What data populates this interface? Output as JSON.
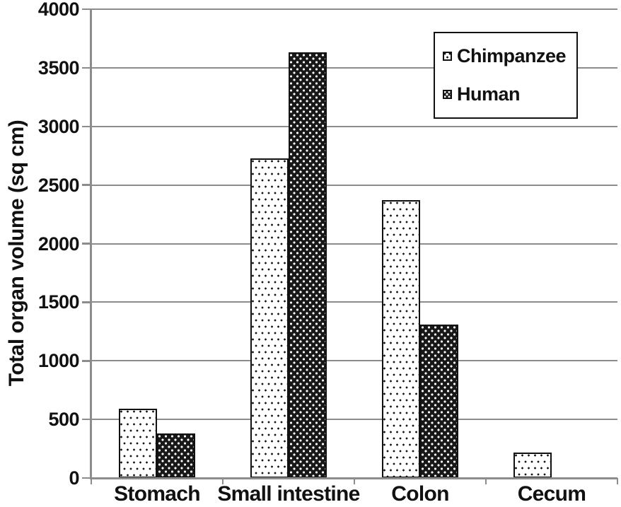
{
  "chart_data": {
    "type": "bar",
    "title": "",
    "xlabel": "",
    "ylabel": "Total organ volume (sq cm)",
    "categories": [
      "Stomach",
      "Small intestine",
      "Colon",
      "Cecum"
    ],
    "series": [
      {
        "name": "Chimpanzee",
        "values": [
          590,
          2730,
          2370,
          220
        ]
      },
      {
        "name": "Human",
        "values": [
          380,
          3630,
          1310,
          0
        ]
      }
    ],
    "ylim": [
      0,
      4000
    ],
    "yticks": [
      0,
      500,
      1000,
      1500,
      2000,
      2500,
      3000,
      3500,
      4000
    ],
    "grid": true,
    "legend_position": "top-right"
  },
  "colors": {
    "grid": "#8c8c8c",
    "axis": "#8c8c8c",
    "text": "#111111",
    "bar_border": "#111111",
    "chimpanzee_fill": "#ffffff",
    "chimpanzee_dot": "#141414",
    "human_fill": "#181818",
    "human_dot": "#ffffff"
  }
}
